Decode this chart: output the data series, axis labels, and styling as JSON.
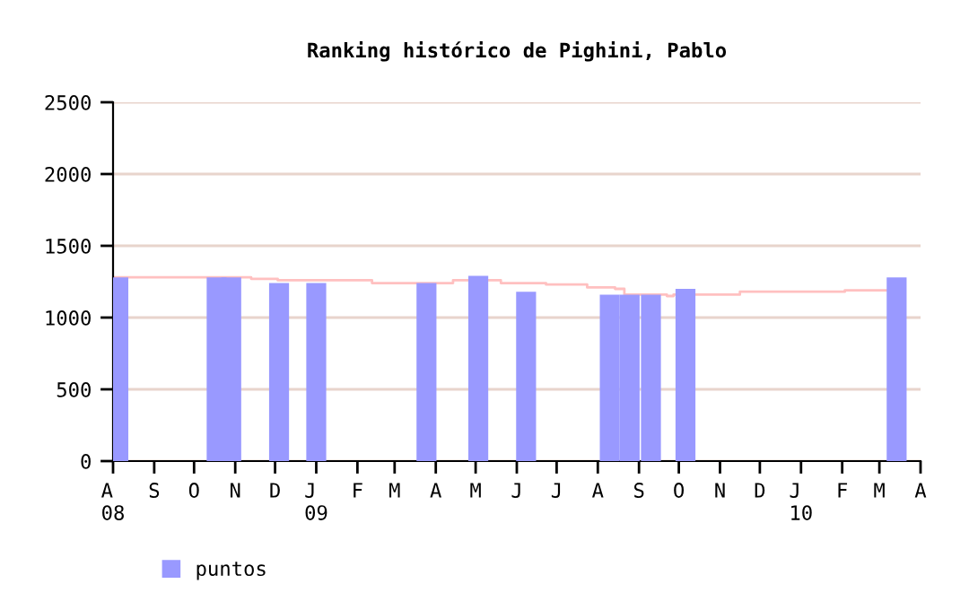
{
  "chart_data": {
    "type": "bar",
    "title": "Ranking histórico de Pighini, Pablo",
    "xlim": [
      "2008-08-01",
      "2010-04-01"
    ],
    "xticks": [
      {
        "value": "2008-08-01",
        "label": "A\n08"
      },
      {
        "value": "2008-09-01",
        "label": "S"
      },
      {
        "value": "2008-10-01",
        "label": "O"
      },
      {
        "value": "2008-11-01",
        "label": "N"
      },
      {
        "value": "2008-12-01",
        "label": "D"
      },
      {
        "value": "2009-01-01",
        "label": "J\n09"
      },
      {
        "value": "2009-02-01",
        "label": "F"
      },
      {
        "value": "2009-03-01",
        "label": "M"
      },
      {
        "value": "2009-04-01",
        "label": "A"
      },
      {
        "value": "2009-05-01",
        "label": "M"
      },
      {
        "value": "2009-06-01",
        "label": "J"
      },
      {
        "value": "2009-07-01",
        "label": "J"
      },
      {
        "value": "2009-08-01",
        "label": "A"
      },
      {
        "value": "2009-09-01",
        "label": "S"
      },
      {
        "value": "2009-10-01",
        "label": "O"
      },
      {
        "value": "2009-11-01",
        "label": "N"
      },
      {
        "value": "2009-12-01",
        "label": "D"
      },
      {
        "value": "2010-01-01",
        "label": "J\n10"
      },
      {
        "value": "2010-02-01",
        "label": "F"
      },
      {
        "value": "2010-03-01",
        "label": "M"
      },
      {
        "value": "2010-04-01",
        "label": "A"
      }
    ],
    "ylim": [
      0,
      2500
    ],
    "yticks": [
      0,
      500,
      1000,
      1500,
      2000,
      2500
    ],
    "grid": "y",
    "legend": "bottom left",
    "series": [
      {
        "name": "puntos",
        "color": "#9999ff",
        "x": [
          "2008-08-05",
          "2008-10-18",
          "2008-10-29",
          "2008-12-04",
          "2009-01-01",
          "2009-03-25",
          "2009-05-03",
          "2009-06-08",
          "2009-08-10",
          "2009-08-25",
          "2009-09-10",
          "2009-10-06",
          "2010-03-14"
        ],
        "values": [
          1280,
          1280,
          1280,
          1240,
          1240,
          1240,
          1290,
          1180,
          1160,
          1160,
          1160,
          1200,
          1280
        ]
      },
      {
        "type": "step",
        "color": "#ffc0c0",
        "x": [
          "2008-08-01",
          "2008-11-13",
          "2008-12-03",
          "2009-02-12",
          "2009-04-14",
          "2009-05-20",
          "2009-06-23",
          "2009-07-24",
          "2009-08-14",
          "2009-08-21",
          "2009-09-22",
          "2009-09-27",
          "2009-11-16",
          "2010-02-03",
          "2010-03-06"
        ],
        "values": [
          1280,
          1270,
          1260,
          1240,
          1260,
          1240,
          1230,
          1210,
          1200,
          1160,
          1150,
          1160,
          1180,
          1190,
          1190
        ]
      }
    ]
  }
}
